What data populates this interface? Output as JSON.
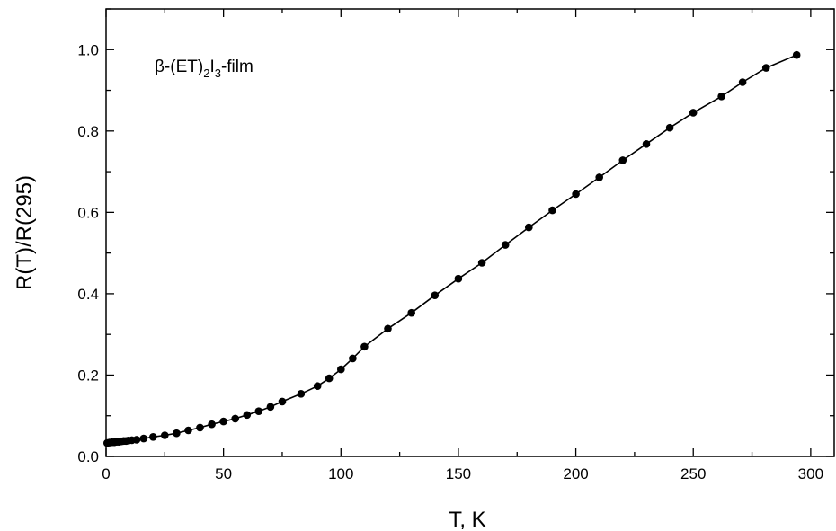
{
  "chart_data": {
    "type": "line",
    "xlabel": "T,  K",
    "ylabel": "R(T)/R(295)",
    "xlim": [
      0,
      310
    ],
    "ylim": [
      0,
      1.1
    ],
    "x_ticks": [
      0,
      50,
      100,
      150,
      200,
      250,
      300
    ],
    "y_ticks": [
      0.0,
      0.2,
      0.4,
      0.6,
      0.8,
      1.0
    ],
    "x_tick_labels": [
      "0",
      "50",
      "100",
      "150",
      "200",
      "250",
      "300"
    ],
    "y_tick_labels": [
      "0.0",
      "0.2",
      "0.4",
      "0.6",
      "0.8",
      "1.0"
    ],
    "annotation": {
      "prefix": "β-(ET)",
      "sub1": "2",
      "mid": "I",
      "sub2": "3",
      "suffix": "-film"
    },
    "grid": false,
    "legend": "none",
    "marker": "filled-circle",
    "color": "#000000",
    "series": [
      {
        "x": [
          0.5,
          1.5,
          2.5,
          3.5,
          4.5,
          5.5,
          6.5,
          7.5,
          8.5,
          9.5,
          11,
          13,
          16,
          20,
          25,
          30,
          35,
          40,
          45,
          50,
          55,
          60,
          65,
          70,
          75,
          83,
          90,
          95,
          100,
          105,
          110,
          120,
          130,
          140,
          150,
          160,
          170,
          180,
          190,
          200,
          210,
          220,
          230,
          240,
          250,
          262,
          271,
          281,
          294
        ],
        "y": [
          0.033,
          0.034,
          0.035,
          0.035,
          0.036,
          0.036,
          0.037,
          0.038,
          0.038,
          0.039,
          0.04,
          0.041,
          0.044,
          0.048,
          0.052,
          0.057,
          0.064,
          0.071,
          0.079,
          0.086,
          0.093,
          0.102,
          0.111,
          0.122,
          0.135,
          0.154,
          0.173,
          0.192,
          0.214,
          0.241,
          0.27,
          0.314,
          0.353,
          0.396,
          0.437,
          0.476,
          0.52,
          0.563,
          0.605,
          0.645,
          0.686,
          0.728,
          0.768,
          0.808,
          0.845,
          0.885,
          0.92,
          0.955,
          0.987
        ]
      }
    ]
  }
}
